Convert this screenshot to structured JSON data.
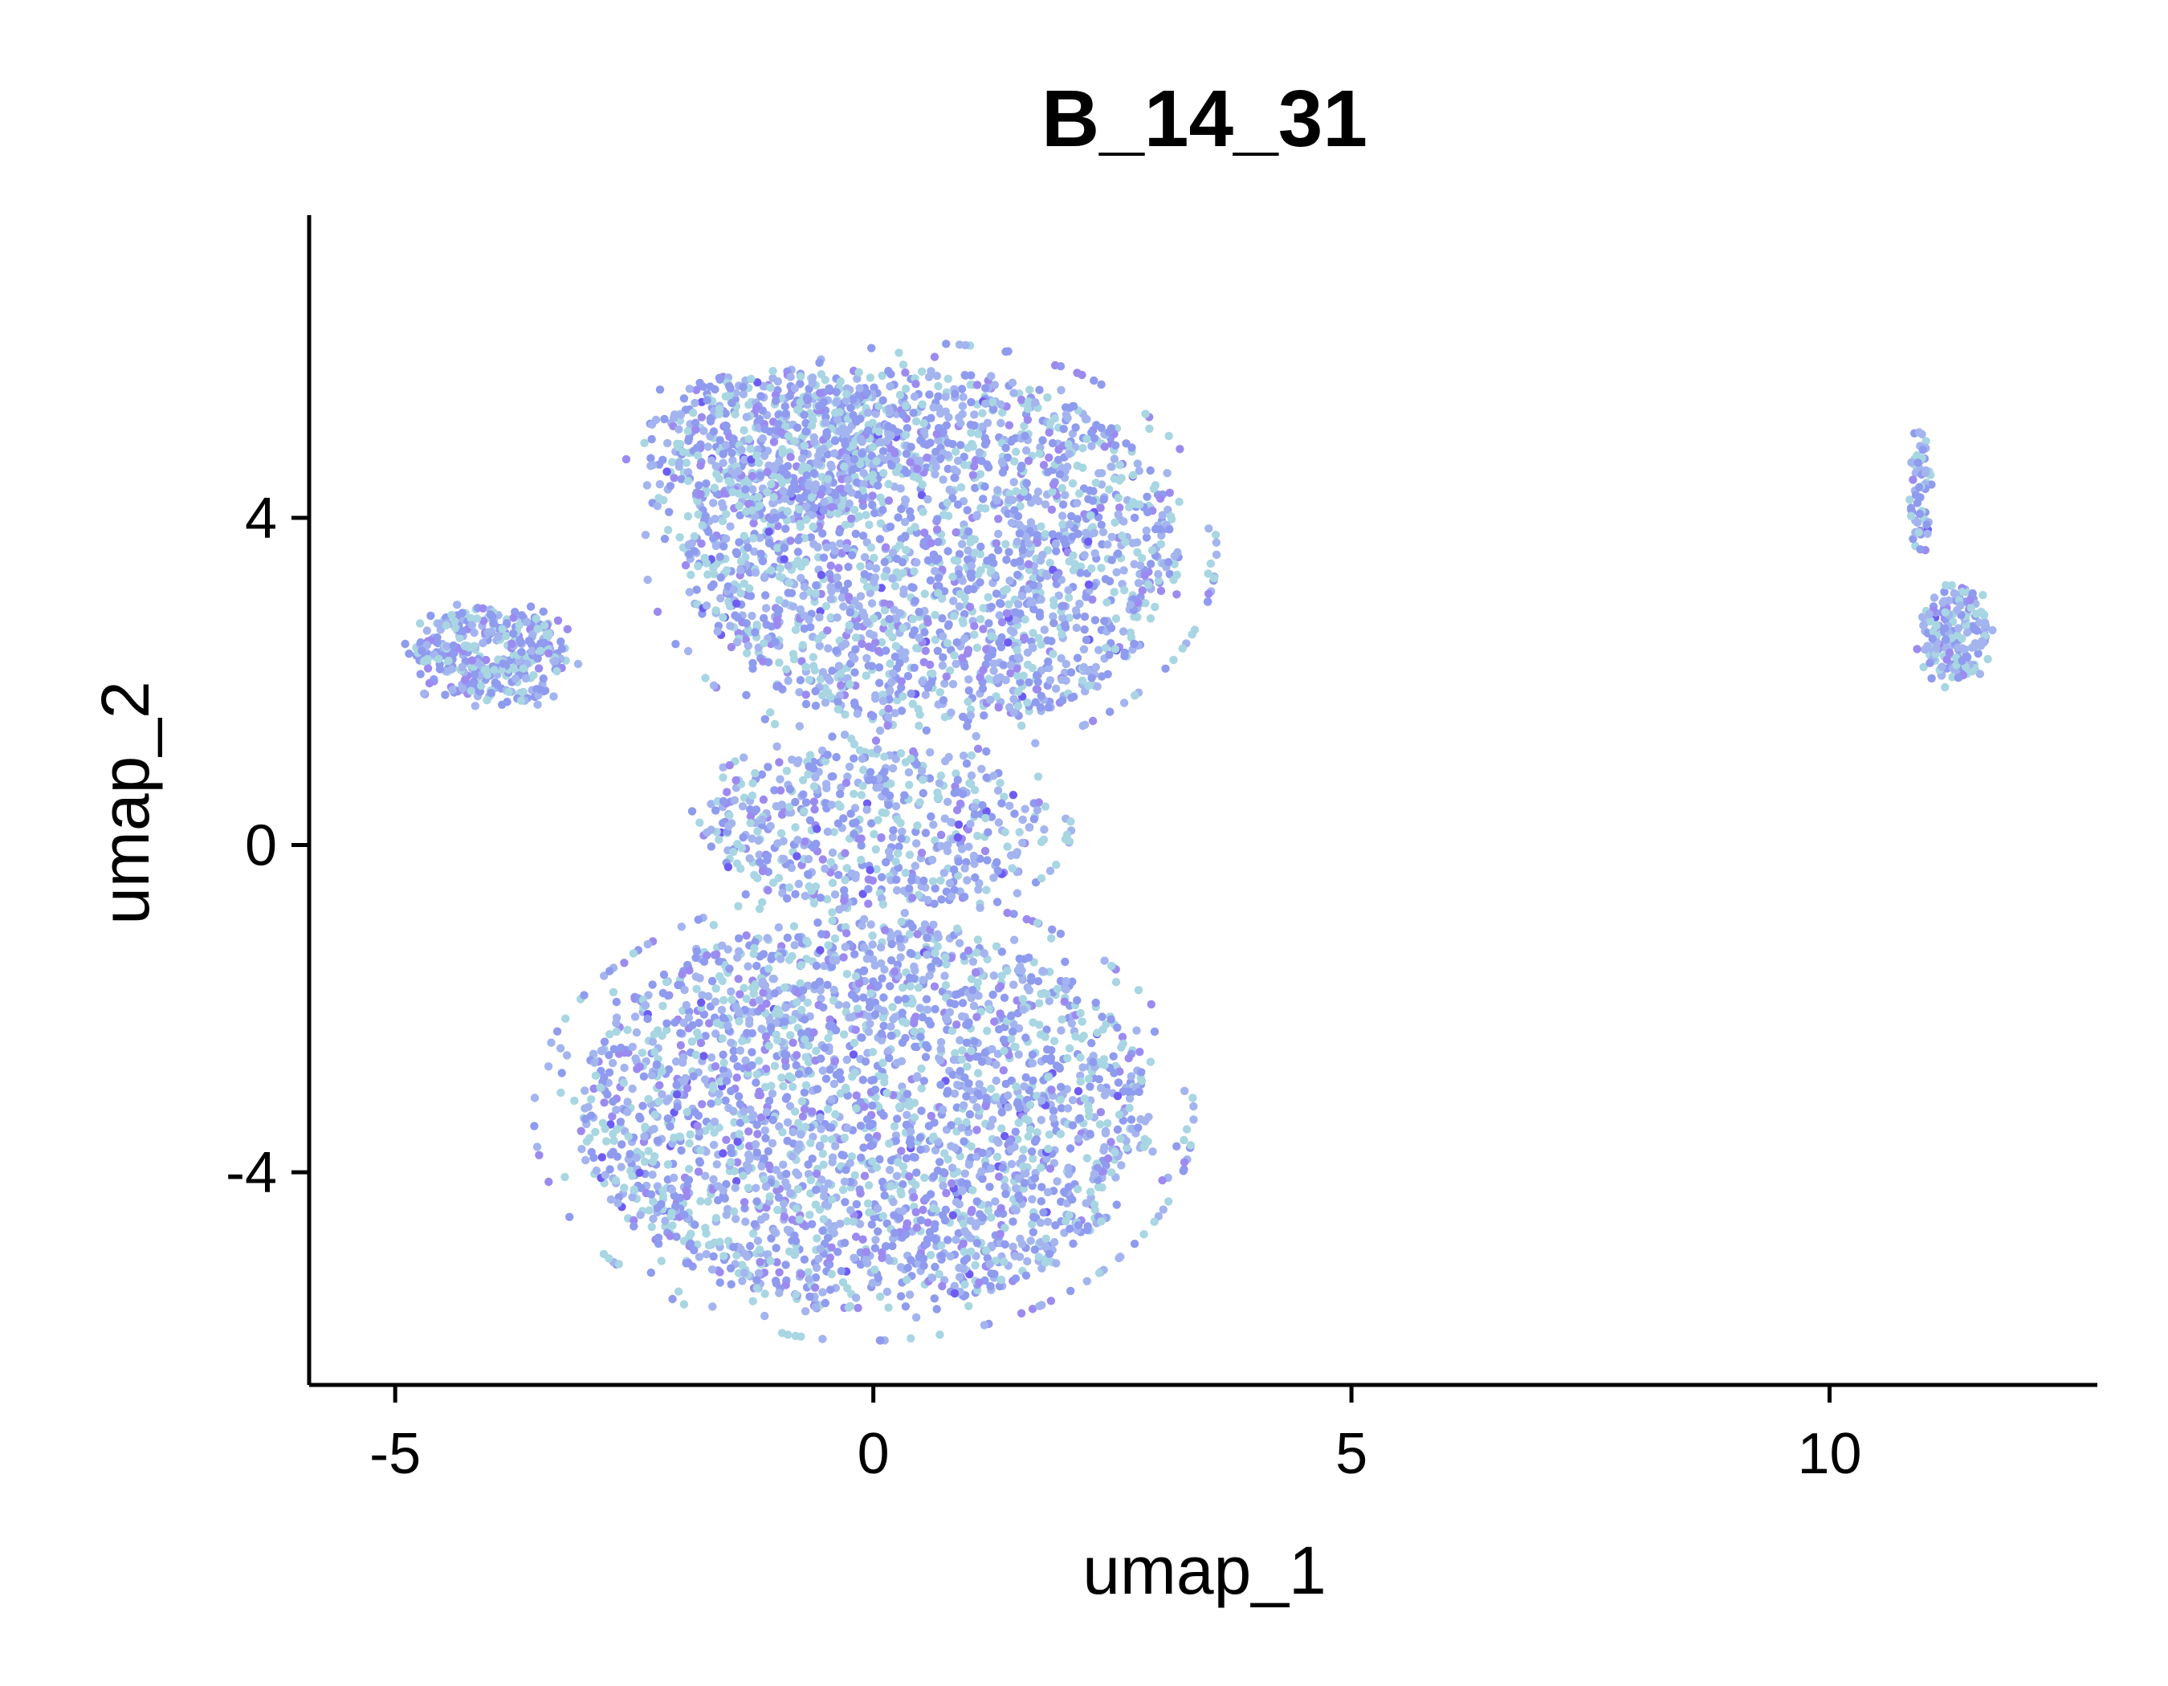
{
  "chart_data": {
    "type": "scatter",
    "title": "B_14_31",
    "xlabel": "umap_1",
    "ylabel": "umap_2",
    "xlim": [
      -5.9,
      12.8
    ],
    "ylim": [
      -6.6,
      7.7
    ],
    "x_ticks": [
      {
        "value": -5,
        "label": "-5"
      },
      {
        "value": 0,
        "label": "0"
      },
      {
        "value": 5,
        "label": "5"
      },
      {
        "value": 10,
        "label": "10"
      }
    ],
    "y_ticks": [
      {
        "value": 4,
        "label": "4"
      },
      {
        "value": 0,
        "label": "0"
      },
      {
        "value": -4,
        "label": "-4"
      }
    ],
    "grid": false,
    "legend": "none",
    "colors": [
      "#8f9bee",
      "#a3b4ef",
      "#a8d6e2",
      "#9d8af0",
      "#6e5cf2"
    ],
    "clusters": [
      {
        "name": "lower lobe",
        "center": [
          -0.1,
          -3.3
        ],
        "radius": [
          3.0,
          2.4
        ],
        "points": 2600
      },
      {
        "name": "upper lobe",
        "center": [
          0.6,
          3.6
        ],
        "radius": [
          2.6,
          2.2
        ],
        "points": 2100
      },
      {
        "name": "upper left lobe",
        "center": [
          -1.0,
          4.9
        ],
        "radius": [
          1.4,
          0.9
        ],
        "points": 500
      },
      {
        "name": "left arm",
        "center": [
          -4.0,
          2.3
        ],
        "radius": [
          0.8,
          0.6
        ],
        "points": 380
      },
      {
        "name": "bridge",
        "center": [
          0.0,
          0.2
        ],
        "radius": [
          1.8,
          1.0
        ],
        "points": 550
      },
      {
        "name": "right island",
        "center": [
          11.3,
          2.6
        ],
        "radius": [
          0.35,
          0.6
        ],
        "points": 190
      },
      {
        "name": "right island tail",
        "center": [
          10.95,
          4.3
        ],
        "radius": [
          0.12,
          0.9
        ],
        "points": 60
      }
    ]
  }
}
